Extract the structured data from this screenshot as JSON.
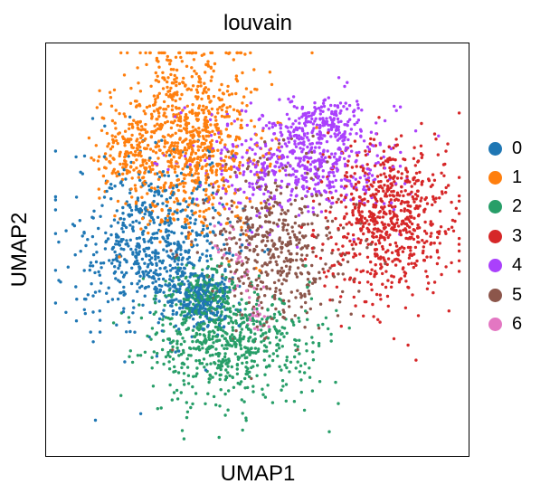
{
  "chart_data": {
    "type": "scatter",
    "title": "louvain",
    "xlabel": "UMAP1",
    "ylabel": "UMAP2",
    "grid": false,
    "legend_position": "right",
    "axis_ticks": false,
    "series": [
      {
        "name": "0",
        "color": "#1f77b4",
        "count": 900,
        "ellipses": [
          {
            "cx": -4.4,
            "cy": 0.0,
            "sx": 1.9,
            "sy": 2.1,
            "w": 0.75
          },
          {
            "cx": -2.4,
            "cy": -2.4,
            "sx": 0.8,
            "sy": 0.7,
            "w": 0.25
          }
        ]
      },
      {
        "name": "1",
        "color": "#ff7f0e",
        "count": 1000,
        "ellipses": [
          {
            "cx": -2.9,
            "cy": 4.5,
            "sx": 1.7,
            "sy": 2.3,
            "w": 0.85
          },
          {
            "cx": -5.4,
            "cy": 3.9,
            "sx": 0.8,
            "sy": 0.9,
            "w": 0.15
          }
        ]
      },
      {
        "name": "2",
        "color": "#279e68",
        "count": 800,
        "ellipses": [
          {
            "cx": -1.2,
            "cy": -4.3,
            "sx": 2.1,
            "sy": 1.4,
            "w": 0.75
          },
          {
            "cx": -2.4,
            "cy": -2.2,
            "sx": 0.9,
            "sy": 0.8,
            "w": 0.25
          }
        ]
      },
      {
        "name": "3",
        "color": "#d62728",
        "count": 700,
        "ellipses": [
          {
            "cx": 5.5,
            "cy": 1.2,
            "sx": 1.6,
            "sy": 2.0,
            "w": 1.0
          }
        ]
      },
      {
        "name": "4",
        "color": "#aa40fc",
        "count": 700,
        "ellipses": [
          {
            "cx": 2.0,
            "cy": 3.4,
            "sx": 2.4,
            "sy": 1.3,
            "w": 0.8
          },
          {
            "cx": 2.8,
            "cy": 5.2,
            "sx": 0.9,
            "sy": 0.7,
            "w": 0.2
          }
        ]
      },
      {
        "name": "5",
        "color": "#8c564b",
        "count": 500,
        "ellipses": [
          {
            "cx": 0.8,
            "cy": 0.0,
            "sx": 1.8,
            "sy": 1.9,
            "w": 1.0
          }
        ]
      },
      {
        "name": "6",
        "color": "#e377c2",
        "count": 50,
        "ellipses": [
          {
            "cx": -0.9,
            "cy": -0.8,
            "sx": 0.5,
            "sy": 0.9,
            "w": 0.6
          },
          {
            "cx": 0.0,
            "cy": -3.0,
            "sx": 0.3,
            "sy": 0.6,
            "w": 0.4
          }
        ]
      }
    ],
    "xlim": [
      -9,
      9
    ],
    "ylim": [
      -9,
      8.5
    ]
  }
}
